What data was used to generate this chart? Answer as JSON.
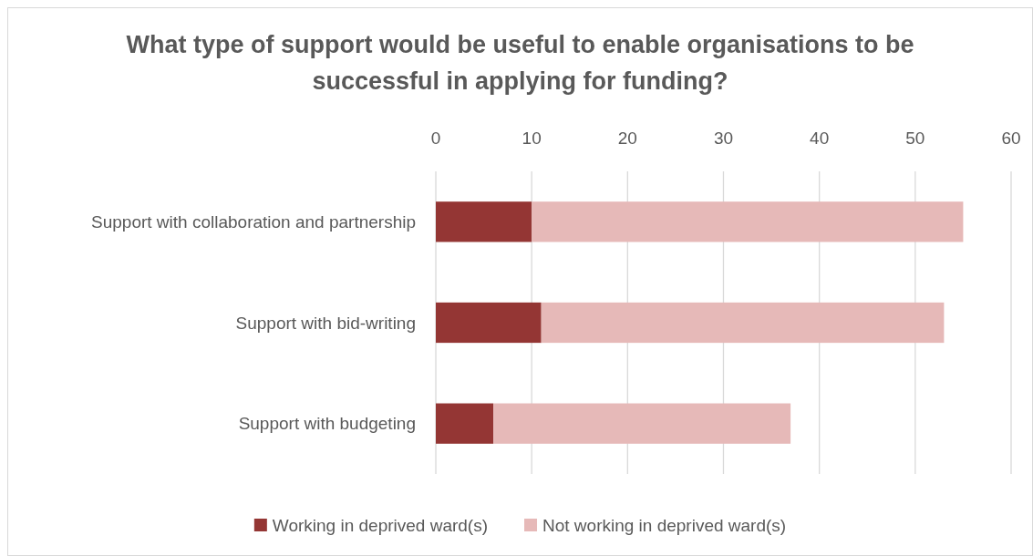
{
  "chart_data": {
    "type": "bar",
    "orientation": "horizontal",
    "stacked": true,
    "title": "What type of support would be useful to enable organisations to be successful in applying for funding?",
    "categories": [
      "Support with collaboration and partnership",
      "Support with bid-writing",
      "Support with budgeting"
    ],
    "series": [
      {
        "name": "Working in deprived ward(s)",
        "color": "#943634",
        "values": [
          10,
          11,
          6
        ]
      },
      {
        "name": "Not working in deprived ward(s)",
        "color": "#e6b9b8",
        "values": [
          45,
          42,
          31
        ]
      }
    ],
    "xlim": [
      0,
      60
    ],
    "xticks": [
      0,
      10,
      20,
      30,
      40,
      50,
      60
    ],
    "grid": "x",
    "legend": "bottom"
  }
}
